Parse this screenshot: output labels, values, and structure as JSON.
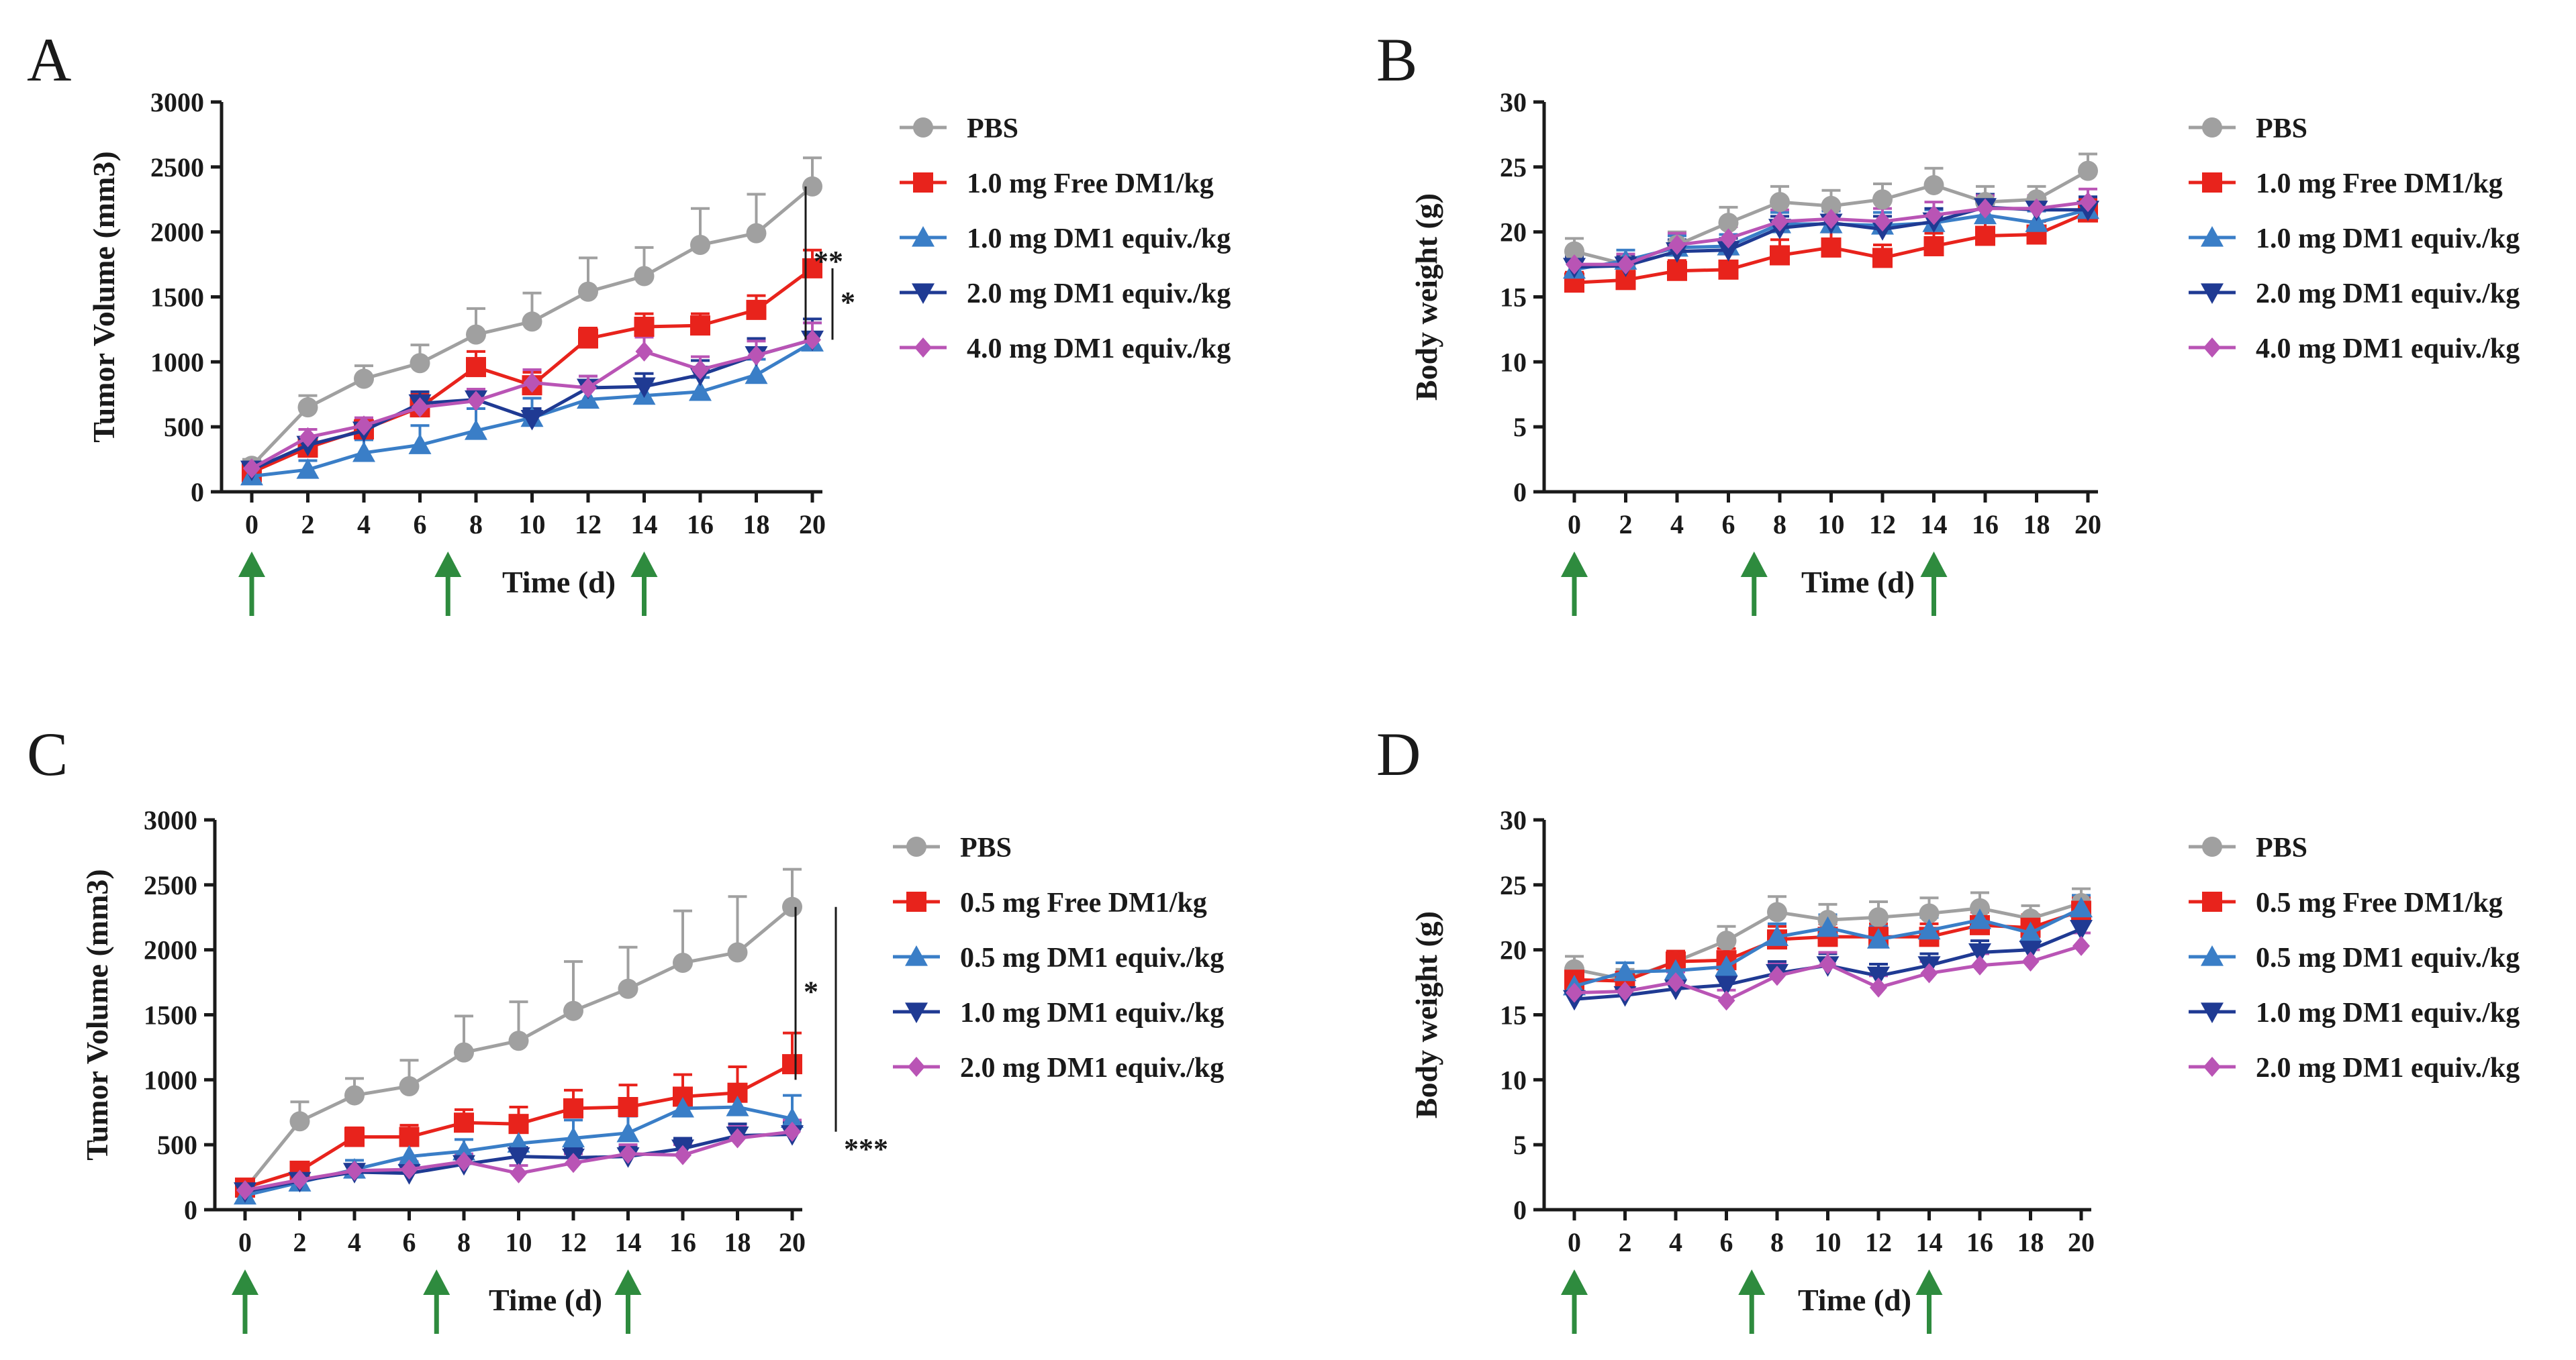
{
  "chart_data": [
    {
      "panel": "A",
      "type": "line",
      "xlabel": "Time (d)",
      "ylabel": "Tumor Volume (mm3)",
      "xlim": [
        0,
        20
      ],
      "ylim": [
        0,
        3000
      ],
      "xticks": [
        0,
        2,
        4,
        6,
        8,
        10,
        12,
        14,
        16,
        18,
        20
      ],
      "yticks": [
        0,
        500,
        1000,
        1500,
        2000,
        2500,
        3000
      ],
      "x": [
        0,
        2,
        4,
        6,
        8,
        10,
        12,
        14,
        16,
        18,
        20
      ],
      "dosing_days": [
        0,
        7,
        14
      ],
      "series": [
        {
          "name": "PBS",
          "color": "#a0a0a0",
          "marker": "circle",
          "values": [
            200,
            650,
            870,
            990,
            1210,
            1310,
            1540,
            1660,
            1900,
            1990,
            2350
          ],
          "errors": [
            50,
            90,
            100,
            140,
            200,
            220,
            260,
            220,
            280,
            300,
            220
          ]
        },
        {
          "name": "1.0 mg Free DM1/kg",
          "color": "#e8231c",
          "marker": "square",
          "values": [
            150,
            340,
            480,
            650,
            960,
            820,
            1180,
            1270,
            1280,
            1400,
            1720
          ],
          "errors": [
            30,
            60,
            70,
            100,
            120,
            100,
            80,
            100,
            90,
            110,
            140
          ]
        },
        {
          "name": "1.0 mg DM1 equiv./kg",
          "color": "#3a7ec7",
          "marker": "triangle-up",
          "values": [
            120,
            170,
            300,
            360,
            470,
            570,
            710,
            740,
            770,
            900,
            1150
          ],
          "errors": [
            30,
            70,
            100,
            150,
            170,
            150,
            100,
            110,
            110,
            120,
            150
          ]
        },
        {
          "name": "2.0 mg DM1 equiv./kg",
          "color": "#1f3a93",
          "marker": "triangle-down",
          "values": [
            170,
            360,
            470,
            680,
            710,
            560,
            800,
            810,
            900,
            1050,
            1170
          ],
          "errors": [
            30,
            60,
            70,
            90,
            80,
            80,
            90,
            100,
            110,
            130,
            160
          ]
        },
        {
          "name": "4.0 mg DM1 equiv./kg",
          "color": "#b954b5",
          "marker": "diamond",
          "values": [
            180,
            420,
            510,
            650,
            700,
            840,
            800,
            1080,
            940,
            1050,
            1170
          ],
          "errors": [
            30,
            60,
            60,
            80,
            90,
            100,
            90,
            110,
            100,
            110,
            130
          ]
        }
      ],
      "significance": [
        {
          "label": "**",
          "from": 2350,
          "to": 1170
        },
        {
          "label": "*",
          "from": 1720,
          "to": 1170
        }
      ]
    },
    {
      "panel": "B",
      "type": "line",
      "xlabel": "Time (d)",
      "ylabel": "Body weight (g)",
      "xlim": [
        0,
        20
      ],
      "ylim": [
        0,
        30
      ],
      "xticks": [
        0,
        2,
        4,
        6,
        8,
        10,
        12,
        14,
        16,
        18,
        20
      ],
      "yticks": [
        0,
        5,
        10,
        15,
        20,
        25,
        30
      ],
      "x": [
        0,
        2,
        4,
        6,
        8,
        10,
        12,
        14,
        16,
        18,
        20
      ],
      "dosing_days": [
        0,
        7,
        14
      ],
      "series": [
        {
          "name": "PBS",
          "color": "#a0a0a0",
          "marker": "circle",
          "values": [
            18.5,
            17.5,
            19.0,
            20.7,
            22.3,
            22.0,
            22.5,
            23.6,
            22.3,
            22.5,
            24.7
          ],
          "errors": [
            1.0,
            0.8,
            1.0,
            1.2,
            1.2,
            1.2,
            1.2,
            1.3,
            1.2,
            1.0,
            1.3
          ]
        },
        {
          "name": "1.0 mg Free DM1/kg",
          "color": "#e8231c",
          "marker": "square",
          "values": [
            16.1,
            16.3,
            17.0,
            17.1,
            18.2,
            18.8,
            18.0,
            18.9,
            19.7,
            19.8,
            21.5
          ],
          "errors": [
            0.8,
            0.8,
            0.8,
            1.2,
            1.2,
            1.2,
            1.0,
            1.0,
            1.0,
            1.0,
            1.0
          ]
        },
        {
          "name": "1.0 mg DM1 equiv./kg",
          "color": "#3a7ec7",
          "marker": "triangle-up",
          "values": [
            17.1,
            17.8,
            18.8,
            18.9,
            20.6,
            20.6,
            20.5,
            20.7,
            21.3,
            20.7,
            21.7
          ],
          "errors": [
            0.8,
            0.8,
            0.9,
            0.9,
            0.9,
            1.0,
            1.0,
            1.0,
            1.0,
            0.9,
            1.0
          ]
        },
        {
          "name": "2.0 mg DM1 equiv./kg",
          "color": "#1f3a93",
          "marker": "triangle-down",
          "values": [
            17.3,
            17.4,
            18.5,
            18.6,
            20.3,
            20.7,
            20.2,
            20.8,
            21.9,
            21.7,
            21.7
          ],
          "errors": [
            0.8,
            0.8,
            0.9,
            0.9,
            0.9,
            1.0,
            1.0,
            1.0,
            1.0,
            1.0,
            1.0
          ]
        },
        {
          "name": "4.0 mg DM1 equiv./kg",
          "color": "#b954b5",
          "marker": "diamond",
          "values": [
            17.5,
            17.5,
            19.0,
            19.5,
            20.8,
            21.0,
            20.8,
            21.3,
            21.8,
            21.8,
            22.3
          ],
          "errors": [
            0.8,
            0.8,
            0.9,
            0.9,
            0.9,
            1.0,
            1.0,
            1.0,
            1.0,
            1.0,
            1.0
          ]
        }
      ],
      "significance": []
    },
    {
      "panel": "C",
      "type": "line",
      "xlabel": "Time (d)",
      "ylabel": "Tumor Volume (mm3)",
      "xlim": [
        0,
        20
      ],
      "ylim": [
        0,
        3000
      ],
      "xticks": [
        0,
        2,
        4,
        6,
        8,
        10,
        12,
        14,
        16,
        18,
        20
      ],
      "yticks": [
        0,
        500,
        1000,
        1500,
        2000,
        2500,
        3000
      ],
      "x": [
        0,
        2,
        4,
        6,
        8,
        10,
        12,
        14,
        16,
        18,
        20
      ],
      "dosing_days": [
        0,
        7,
        14
      ],
      "series": [
        {
          "name": "PBS",
          "color": "#a0a0a0",
          "marker": "circle",
          "values": [
            160,
            680,
            880,
            950,
            1210,
            1300,
            1530,
            1700,
            1900,
            1980,
            2330
          ],
          "errors": [
            40,
            150,
            130,
            200,
            280,
            300,
            380,
            320,
            400,
            430,
            290
          ]
        },
        {
          "name": "0.5 mg Free DM1/kg",
          "color": "#e8231c",
          "marker": "square",
          "values": [
            170,
            300,
            560,
            560,
            670,
            660,
            780,
            790,
            870,
            900,
            1120
          ],
          "errors": [
            30,
            50,
            70,
            90,
            100,
            130,
            140,
            170,
            170,
            200,
            240
          ]
        },
        {
          "name": "0.5 mg DM1 equiv./kg",
          "color": "#3a7ec7",
          "marker": "triangle-up",
          "values": [
            110,
            210,
            310,
            410,
            450,
            510,
            550,
            590,
            780,
            790,
            700
          ],
          "errors": [
            30,
            50,
            70,
            100,
            90,
            120,
            140,
            130,
            150,
            160,
            180
          ]
        },
        {
          "name": "1.0 mg DM1 equiv./kg",
          "color": "#1f3a93",
          "marker": "triangle-down",
          "values": [
            140,
            220,
            290,
            280,
            350,
            410,
            400,
            410,
            470,
            570,
            580
          ],
          "errors": [
            30,
            40,
            50,
            60,
            60,
            70,
            70,
            80,
            80,
            90,
            90
          ]
        },
        {
          "name": "2.0 mg DM1 equiv./kg",
          "color": "#b954b5",
          "marker": "diamond",
          "values": [
            150,
            230,
            300,
            310,
            370,
            280,
            360,
            430,
            420,
            550,
            600
          ],
          "errors": [
            30,
            40,
            50,
            60,
            60,
            60,
            70,
            70,
            80,
            90,
            90
          ]
        }
      ],
      "significance": [
        {
          "label": "*",
          "from": 2330,
          "to": 1000
        },
        {
          "label": "***",
          "from": 2330,
          "to": 600
        }
      ]
    },
    {
      "panel": "D",
      "type": "line",
      "xlabel": "Time (d)",
      "ylabel": "Body weight (g)",
      "xlim": [
        0,
        20
      ],
      "ylim": [
        0,
        30
      ],
      "xticks": [
        0,
        2,
        4,
        6,
        8,
        10,
        12,
        14,
        16,
        18,
        20
      ],
      "yticks": [
        0,
        5,
        10,
        15,
        20,
        25,
        30
      ],
      "x": [
        0,
        2,
        4,
        6,
        8,
        10,
        12,
        14,
        16,
        18,
        20
      ],
      "dosing_days": [
        0,
        7,
        14
      ],
      "series": [
        {
          "name": "PBS",
          "color": "#a0a0a0",
          "marker": "circle",
          "values": [
            18.5,
            17.7,
            19.1,
            20.7,
            22.9,
            22.3,
            22.5,
            22.8,
            23.2,
            22.4,
            23.6
          ],
          "errors": [
            1.0,
            0.8,
            0.8,
            1.1,
            1.2,
            1.2,
            1.2,
            1.2,
            1.2,
            1.0,
            1.1
          ]
        },
        {
          "name": "0.5 mg Free DM1/kg",
          "color": "#e8231c",
          "marker": "square",
          "values": [
            17.7,
            17.6,
            19.1,
            19.2,
            20.8,
            21.0,
            21.0,
            21.0,
            21.9,
            21.7,
            23.0
          ],
          "errors": [
            0.8,
            0.7,
            0.8,
            0.9,
            1.0,
            1.0,
            1.0,
            1.0,
            1.0,
            1.0,
            1.0
          ]
        },
        {
          "name": "0.5 mg DM1 equiv./kg",
          "color": "#3a7ec7",
          "marker": "triangle-up",
          "values": [
            17.2,
            18.3,
            18.4,
            18.7,
            21.0,
            21.7,
            20.8,
            21.5,
            22.3,
            21.3,
            23.2
          ],
          "errors": [
            0.8,
            0.7,
            0.8,
            0.9,
            1.0,
            1.0,
            1.0,
            1.0,
            1.0,
            1.0,
            1.0
          ]
        },
        {
          "name": "1.0 mg DM1 equiv./kg",
          "color": "#1f3a93",
          "marker": "triangle-down",
          "values": [
            16.2,
            16.5,
            17.0,
            17.3,
            18.2,
            18.8,
            18.0,
            18.8,
            19.8,
            20.0,
            21.6
          ],
          "errors": [
            0.7,
            0.7,
            0.8,
            0.9,
            0.9,
            0.9,
            0.9,
            0.9,
            0.9,
            0.9,
            1.0
          ]
        },
        {
          "name": "2.0 mg DM1 equiv./kg",
          "color": "#b954b5",
          "marker": "diamond",
          "values": [
            16.7,
            16.8,
            17.5,
            16.1,
            18.0,
            18.9,
            17.1,
            18.2,
            18.8,
            19.1,
            20.3
          ],
          "errors": [
            0.7,
            0.7,
            0.8,
            0.8,
            0.9,
            0.9,
            0.9,
            0.9,
            0.9,
            0.9,
            1.0
          ]
        }
      ],
      "significance": []
    }
  ],
  "arrow_color": "#2e8b3e",
  "axis_color": "#1a1a1a"
}
